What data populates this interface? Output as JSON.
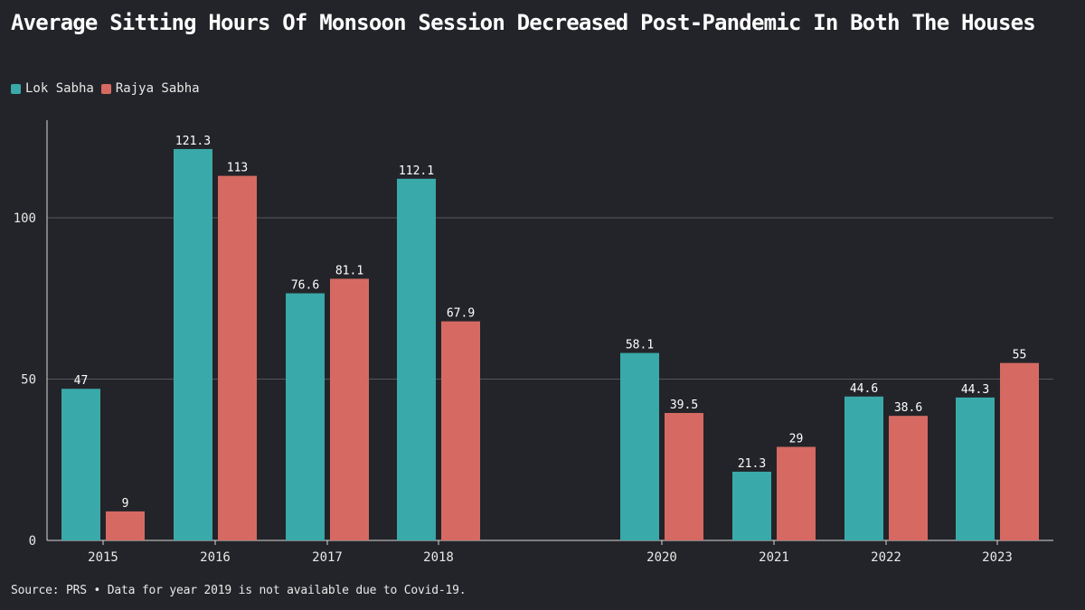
{
  "chart_data": {
    "type": "bar",
    "title": "Average Sitting Hours Of Monsoon Session Decreased Post-Pandemic In Both The Houses",
    "categories": [
      "2015",
      "2016",
      "2017",
      "2018",
      "2020",
      "2021",
      "2022",
      "2023"
    ],
    "series": [
      {
        "name": "Lok Sabha",
        "color": "#3aa9a9",
        "values": [
          47,
          121.3,
          76.6,
          112.1,
          58.1,
          21.3,
          44.6,
          44.3
        ]
      },
      {
        "name": "Rajya Sabha",
        "color": "#d66a63",
        "values": [
          9,
          113,
          81.1,
          67.9,
          39.5,
          29,
          38.6,
          55
        ]
      }
    ],
    "data_labels": [
      [
        "47",
        "121.3",
        "76.6",
        "112.1",
        "58.1",
        "21.3",
        "44.6",
        "44.3"
      ],
      [
        "9",
        "113",
        "81.1",
        "67.9",
        "39.5",
        "29",
        "38.6",
        "55"
      ]
    ],
    "yticks": [
      0,
      50,
      100
    ],
    "ylim": [
      0,
      130
    ],
    "grid": true,
    "legend_position": "top-left",
    "source": "Source: PRS • Data for year 2019 is not available due to Covid-19."
  }
}
